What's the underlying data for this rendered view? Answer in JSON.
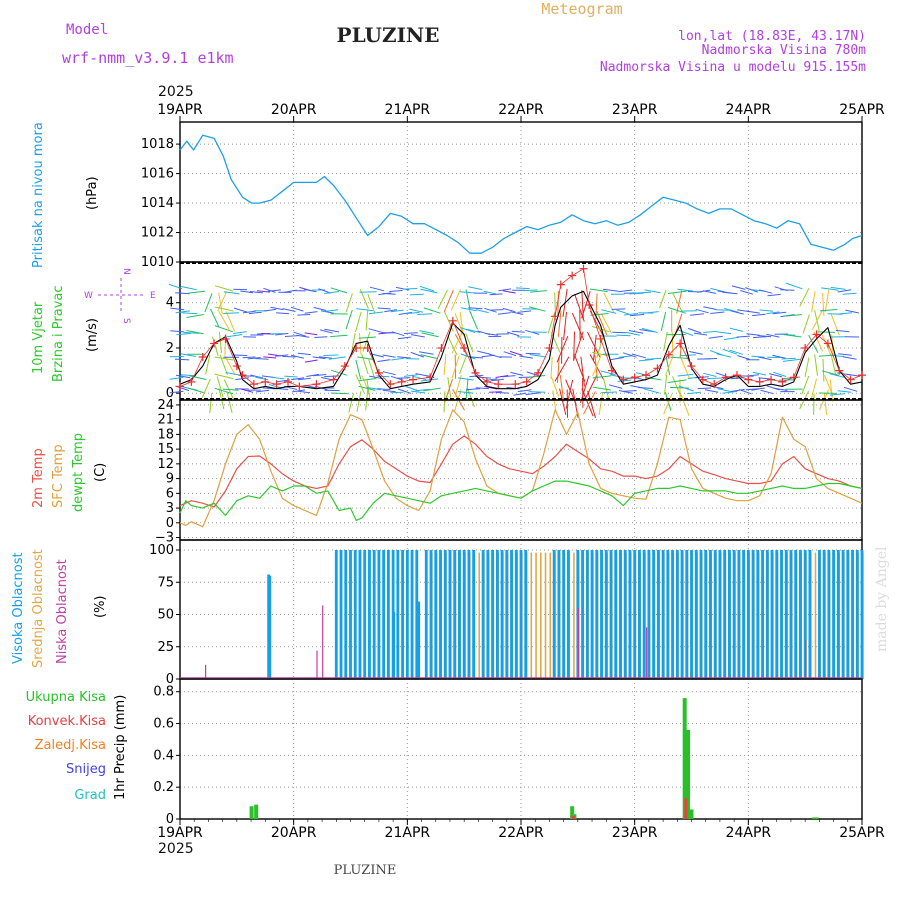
{
  "header": {
    "model_label": "Model",
    "model_name": "wrf-nmm_v3.9.1 e1km",
    "station": "PLUZINE",
    "chart_title": "Meteogram",
    "coords": "lon,lat (18.83E, 43.17N)",
    "elevation": "Nadmorska Visina 780m",
    "model_elevation": "Nadmorska Visina u modelu 915.155m",
    "year": "2025",
    "footer_station": "PLUZINE",
    "watermark": "made by Angel"
  },
  "colors": {
    "pressure": "#1ea0e6",
    "temp2m": "#e8504a",
    "sfc_temp": "#e0a040",
    "dewpoint": "#2ec82e",
    "cloud_high": "#14a0e8",
    "cloud_mid": "#e0a848",
    "cloud_low": "#c040a0",
    "precip_total": "#28c028",
    "precip_conv": "#e84040",
    "precip_frz": "#f08020",
    "snow": "#4040e0",
    "graupel": "#20c0c0",
    "wind_speed": "#000000",
    "wind_gust": "#e83030",
    "compass": "#b040e0"
  },
  "chart_data": [
    {
      "id": "pressure",
      "type": "line",
      "ylabel_name": "Pritisak na nivou mora",
      "ylabel_unit": "(hPa)",
      "ylim": [
        1010,
        1019.5
      ],
      "yticks": [
        1010,
        1012,
        1014,
        1016,
        1018
      ],
      "x_days": [
        "19APR",
        "20APR",
        "21APR",
        "22APR",
        "23APR",
        "24APR",
        "25APR"
      ],
      "grid": true,
      "x": [
        0,
        0.06,
        0.12,
        0.2,
        0.3,
        0.38,
        0.45,
        0.55,
        0.63,
        0.7,
        0.8,
        0.9,
        1.0,
        1.12,
        1.2,
        1.27,
        1.35,
        1.45,
        1.55,
        1.65,
        1.75,
        1.85,
        1.95,
        2.05,
        2.15,
        2.25,
        2.35,
        2.45,
        2.55,
        2.65,
        2.75,
        2.85,
        2.95,
        3.05,
        3.15,
        3.25,
        3.35,
        3.45,
        3.55,
        3.65,
        3.75,
        3.85,
        3.95,
        4.05,
        4.15,
        4.25,
        4.35,
        4.45,
        4.55,
        4.65,
        4.75,
        4.85,
        4.95,
        5.05,
        5.15,
        5.25,
        5.35,
        5.45,
        5.55,
        5.65,
        5.75,
        5.85,
        5.92,
        6.0
      ],
      "values": [
        1017.6,
        1018.2,
        1017.6,
        1018.6,
        1018.4,
        1017.2,
        1015.6,
        1014.4,
        1014.0,
        1014.0,
        1014.2,
        1014.8,
        1015.4,
        1015.4,
        1015.4,
        1015.8,
        1015.2,
        1014.2,
        1013.0,
        1011.8,
        1012.4,
        1013.3,
        1013.1,
        1012.6,
        1012.6,
        1012.2,
        1011.8,
        1011.3,
        1010.6,
        1010.6,
        1011.0,
        1011.6,
        1012.0,
        1012.4,
        1012.2,
        1012.5,
        1012.7,
        1013.2,
        1012.8,
        1012.6,
        1012.8,
        1012.5,
        1012.7,
        1013.2,
        1013.8,
        1014.4,
        1014.2,
        1014.0,
        1013.6,
        1013.3,
        1013.6,
        1013.6,
        1013.2,
        1012.8,
        1012.6,
        1012.3,
        1012.8,
        1012.6,
        1011.2,
        1011.0,
        1010.8,
        1011.2,
        1011.6,
        1011.8
      ]
    },
    {
      "id": "wind",
      "type": "line",
      "ylabel_name": "10m Vjetar",
      "ylabel_name2": "Brzina i Pravac",
      "ylabel_unit": "(m/s)",
      "compass_labels": {
        "n": "N",
        "s": "S",
        "w": "W",
        "e": "E"
      },
      "ylim": [
        -0.3,
        5.8
      ],
      "yticks": [
        0,
        2,
        4
      ],
      "grid": true,
      "series": [
        {
          "role": "speed",
          "x": [
            0,
            0.1,
            0.2,
            0.3,
            0.4,
            0.5,
            0.55,
            0.65,
            0.75,
            0.85,
            0.95,
            1.05,
            1.2,
            1.35,
            1.45,
            1.55,
            1.65,
            1.75,
            1.85,
            1.95,
            2.05,
            2.2,
            2.3,
            2.4,
            2.5,
            2.6,
            2.7,
            2.8,
            2.95,
            3.05,
            3.15,
            3.25,
            3.3,
            3.35,
            3.45,
            3.55,
            3.6,
            3.7,
            3.8,
            3.9,
            4.0,
            4.1,
            4.2,
            4.3,
            4.4,
            4.5,
            4.6,
            4.7,
            4.8,
            4.9,
            5.0,
            5.1,
            5.2,
            5.3,
            5.4,
            5.5,
            5.6,
            5.7,
            5.8,
            5.9,
            6.0
          ],
          "values": [
            0.4,
            0.6,
            1.2,
            2.2,
            2.5,
            1.4,
            0.6,
            0.2,
            0.3,
            0.2,
            0.3,
            0.3,
            0.2,
            0.3,
            1.1,
            2.2,
            2.3,
            0.8,
            0.2,
            0.3,
            0.4,
            0.5,
            1.6,
            3.1,
            2.6,
            0.8,
            0.3,
            0.2,
            0.2,
            0.3,
            0.6,
            1.5,
            3.0,
            3.8,
            4.3,
            4.5,
            4.0,
            3.0,
            1.2,
            0.4,
            0.5,
            0.6,
            0.8,
            2.1,
            3.0,
            1.1,
            0.4,
            0.3,
            0.6,
            0.8,
            0.3,
            0.3,
            0.4,
            0.3,
            0.5,
            1.8,
            2.4,
            2.9,
            1.0,
            0.4,
            0.5
          ]
        },
        {
          "role": "gust",
          "x": [
            0,
            0.1,
            0.2,
            0.3,
            0.4,
            0.5,
            0.55,
            0.65,
            0.75,
            0.85,
            0.95,
            1.05,
            1.2,
            1.35,
            1.45,
            1.55,
            1.65,
            1.75,
            1.85,
            1.95,
            2.05,
            2.2,
            2.3,
            2.4,
            2.5,
            2.6,
            2.7,
            2.8,
            2.95,
            3.05,
            3.15,
            3.25,
            3.3,
            3.35,
            3.45,
            3.55,
            3.6,
            3.7,
            3.8,
            3.9,
            4.0,
            4.1,
            4.2,
            4.3,
            4.4,
            4.5,
            4.6,
            4.7,
            4.8,
            4.9,
            5.0,
            5.1,
            5.2,
            5.3,
            5.4,
            5.5,
            5.6,
            5.7,
            5.8,
            5.9,
            6.0
          ],
          "values": [
            0.3,
            0.5,
            1.6,
            2.2,
            2.4,
            1.2,
            0.8,
            0.4,
            0.5,
            0.4,
            0.5,
            0.3,
            0.4,
            0.6,
            1.2,
            2.0,
            2.0,
            0.9,
            0.4,
            0.5,
            0.6,
            0.7,
            2.0,
            3.2,
            2.0,
            0.9,
            0.5,
            0.4,
            0.4,
            0.5,
            0.9,
            2.0,
            3.4,
            4.8,
            5.2,
            5.5,
            3.9,
            2.4,
            1.0,
            0.6,
            0.7,
            0.8,
            1.1,
            1.7,
            2.2,
            1.2,
            0.6,
            0.4,
            0.7,
            0.8,
            0.6,
            0.5,
            0.6,
            0.5,
            0.7,
            2.0,
            2.6,
            2.2,
            1.0,
            0.6,
            0.8
          ]
        }
      ]
    },
    {
      "id": "temperature",
      "type": "line",
      "ylabel_lines": [
        "2m Temp",
        "SFC Temp",
        "dewpt Temp"
      ],
      "ylabel_unit": "(C)",
      "ylim": [
        -3.5,
        25
      ],
      "yticks": [
        -3,
        0,
        3,
        6,
        9,
        12,
        15,
        18,
        21,
        24
      ],
      "grid": true,
      "series": [
        {
          "role": "temp2m",
          "x": [
            0,
            0.1,
            0.2,
            0.3,
            0.4,
            0.5,
            0.6,
            0.7,
            0.8,
            0.9,
            1.0,
            1.1,
            1.2,
            1.3,
            1.4,
            1.5,
            1.6,
            1.7,
            1.8,
            1.9,
            2.0,
            2.1,
            2.2,
            2.3,
            2.4,
            2.5,
            2.6,
            2.7,
            2.8,
            2.9,
            3.0,
            3.1,
            3.2,
            3.3,
            3.4,
            3.5,
            3.6,
            3.7,
            3.8,
            3.9,
            4.0,
            4.1,
            4.2,
            4.3,
            4.4,
            4.5,
            4.6,
            4.7,
            4.8,
            4.9,
            5.0,
            5.1,
            5.2,
            5.3,
            5.4,
            5.5,
            5.6,
            5.7,
            5.8,
            5.9,
            6.0
          ],
          "values": [
            3.5,
            4.5,
            4.0,
            3.2,
            6.5,
            11.0,
            13.5,
            13.6,
            12.0,
            10.0,
            8.5,
            7.5,
            7.0,
            7.5,
            12.0,
            15.5,
            16.9,
            15.0,
            12.5,
            11.0,
            9.5,
            8.5,
            8.2,
            12.0,
            16.0,
            17.7,
            16.0,
            13.5,
            12.0,
            11.0,
            10.5,
            10.0,
            11.5,
            13.5,
            16.0,
            14.5,
            13.0,
            11.0,
            10.5,
            9.5,
            9.5,
            9.0,
            9.5,
            11.0,
            13.5,
            12.0,
            10.5,
            9.8,
            9.0,
            8.5,
            8.0,
            8.0,
            8.5,
            12.0,
            13.5,
            11.0,
            10.0,
            9.0,
            8.5,
            7.5,
            7.0
          ]
        },
        {
          "role": "sfc_temp",
          "x": [
            0,
            0.05,
            0.1,
            0.2,
            0.3,
            0.4,
            0.5,
            0.6,
            0.7,
            0.8,
            0.9,
            1.0,
            1.1,
            1.2,
            1.3,
            1.4,
            1.5,
            1.6,
            1.7,
            1.8,
            1.9,
            2.0,
            2.1,
            2.2,
            2.3,
            2.4,
            2.5,
            2.6,
            2.7,
            2.8,
            2.9,
            3.0,
            3.1,
            3.2,
            3.3,
            3.4,
            3.5,
            3.6,
            3.7,
            3.8,
            3.9,
            4.0,
            4.1,
            4.2,
            4.3,
            4.4,
            4.5,
            4.6,
            4.7,
            4.8,
            4.9,
            5.0,
            5.1,
            5.2,
            5.3,
            5.4,
            5.5,
            5.6,
            5.7,
            5.8,
            5.9,
            6.0
          ],
          "values": [
            0.0,
            -0.5,
            0.2,
            -0.8,
            4.5,
            12.0,
            18.0,
            20.0,
            17.0,
            10.5,
            5.0,
            3.5,
            2.5,
            1.5,
            8.0,
            17.0,
            22.0,
            21.0,
            15.0,
            8.5,
            5.0,
            3.5,
            2.5,
            6.5,
            17.0,
            23.0,
            20.5,
            13.0,
            7.5,
            6.0,
            5.5,
            5.0,
            6.5,
            14.0,
            23.0,
            18.0,
            22.5,
            12.0,
            7.0,
            6.0,
            5.5,
            5.0,
            4.8,
            12.0,
            21.5,
            21.0,
            11.0,
            7.0,
            6.0,
            5.0,
            4.5,
            4.5,
            5.5,
            10.0,
            21.5,
            17.0,
            15.5,
            9.0,
            7.0,
            6.0,
            5.0,
            4.0
          ]
        },
        {
          "role": "dewpoint",
          "x": [
            0,
            0.05,
            0.1,
            0.2,
            0.3,
            0.4,
            0.5,
            0.6,
            0.7,
            0.8,
            0.9,
            1.0,
            1.1,
            1.2,
            1.3,
            1.4,
            1.5,
            1.55,
            1.6,
            1.7,
            1.8,
            1.9,
            2.0,
            2.1,
            2.2,
            2.3,
            2.4,
            2.5,
            2.6,
            2.7,
            2.8,
            2.9,
            3.0,
            3.1,
            3.2,
            3.3,
            3.4,
            3.5,
            3.6,
            3.7,
            3.8,
            3.9,
            4.0,
            4.1,
            4.2,
            4.3,
            4.4,
            4.5,
            4.6,
            4.7,
            4.8,
            4.9,
            5.0,
            5.1,
            5.2,
            5.3,
            5.4,
            5.5,
            5.6,
            5.7,
            5.8,
            5.9,
            6.0
          ],
          "values": [
            2.0,
            4.5,
            3.5,
            3.0,
            4.0,
            1.5,
            4.5,
            5.5,
            5.0,
            7.5,
            6.5,
            7.5,
            7.5,
            6.0,
            6.5,
            2.5,
            3.0,
            0.5,
            1.0,
            4.0,
            6.0,
            5.5,
            5.0,
            4.5,
            4.0,
            5.5,
            6.0,
            6.5,
            7.0,
            6.5,
            6.0,
            5.5,
            5.0,
            6.5,
            7.5,
            8.5,
            8.5,
            8.0,
            7.5,
            6.5,
            5.5,
            3.5,
            6.0,
            6.5,
            7.0,
            7.0,
            7.5,
            7.0,
            6.5,
            6.5,
            6.5,
            6.0,
            6.0,
            6.5,
            7.0,
            7.5,
            7.0,
            7.0,
            7.5,
            8.0,
            8.0,
            7.5,
            7.0
          ]
        }
      ]
    },
    {
      "id": "cloud",
      "type": "bar",
      "ylabel_lines": [
        "Visoka Oblacnost",
        "Srednja Oblacnost",
        "Niska Oblacnost"
      ],
      "ylabel_unit": "(%)",
      "ylim": [
        0,
        100
      ],
      "yticks": [
        0,
        25,
        50,
        75,
        100
      ],
      "grid": true,
      "high_full_ranges": [
        [
          1.39,
          1.42
        ],
        [
          1.46,
          1.5
        ],
        [
          1.55,
          1.65
        ],
        [
          1.69,
          1.8
        ],
        [
          1.83,
          1.96
        ],
        [
          2.01,
          2.1
        ],
        [
          2.15,
          2.25
        ],
        [
          2.3,
          2.42
        ],
        [
          2.47,
          2.6
        ],
        [
          2.65,
          2.78
        ],
        [
          2.83,
          2.97
        ],
        [
          2.98,
          3.04
        ],
        [
          3.28,
          3.33
        ],
        [
          3.38,
          3.43
        ],
        [
          3.5,
          4.0
        ],
        [
          4.06,
          4.5
        ],
        [
          4.56,
          5.0
        ],
        [
          5.06,
          5.55
        ],
        [
          5.62,
          6.0
        ]
      ],
      "high_extra": [
        [
          0.78,
          81
        ],
        [
          0.79,
          80
        ],
        [
          1.88,
          52
        ],
        [
          2.1,
          60
        ]
      ],
      "mid_range": [
        2.2,
        6.0
      ],
      "low_spikes": [
        [
          0.22,
          11
        ],
        [
          1.2,
          22
        ],
        [
          1.25,
          57
        ],
        [
          3.5,
          55
        ],
        [
          4.1,
          40
        ],
        [
          5.5,
          30
        ]
      ]
    },
    {
      "id": "precip",
      "type": "bar",
      "ylabel_lines": [
        "Ukupna Kisa",
        "Konvek.Kisa",
        "Zaledj.Kisa",
        "Snijeg",
        "Grad"
      ],
      "ylabel_unit": "1hr Precip (mm)",
      "ylim": [
        0,
        0.88
      ],
      "yticks": [
        0,
        0.2,
        0.4,
        0.6,
        0.8
      ],
      "grid": true,
      "total": [
        [
          0.63,
          0.08
        ],
        [
          0.67,
          0.09
        ],
        [
          3.45,
          0.08
        ],
        [
          3.47,
          0.03
        ],
        [
          4.44,
          0.76
        ],
        [
          4.47,
          0.56
        ],
        [
          4.5,
          0.06
        ],
        [
          5.58,
          0.01
        ],
        [
          5.6,
          0.01
        ]
      ],
      "convective": [
        [
          4.45,
          0.13
        ],
        [
          3.46,
          0.02
        ]
      ]
    }
  ]
}
